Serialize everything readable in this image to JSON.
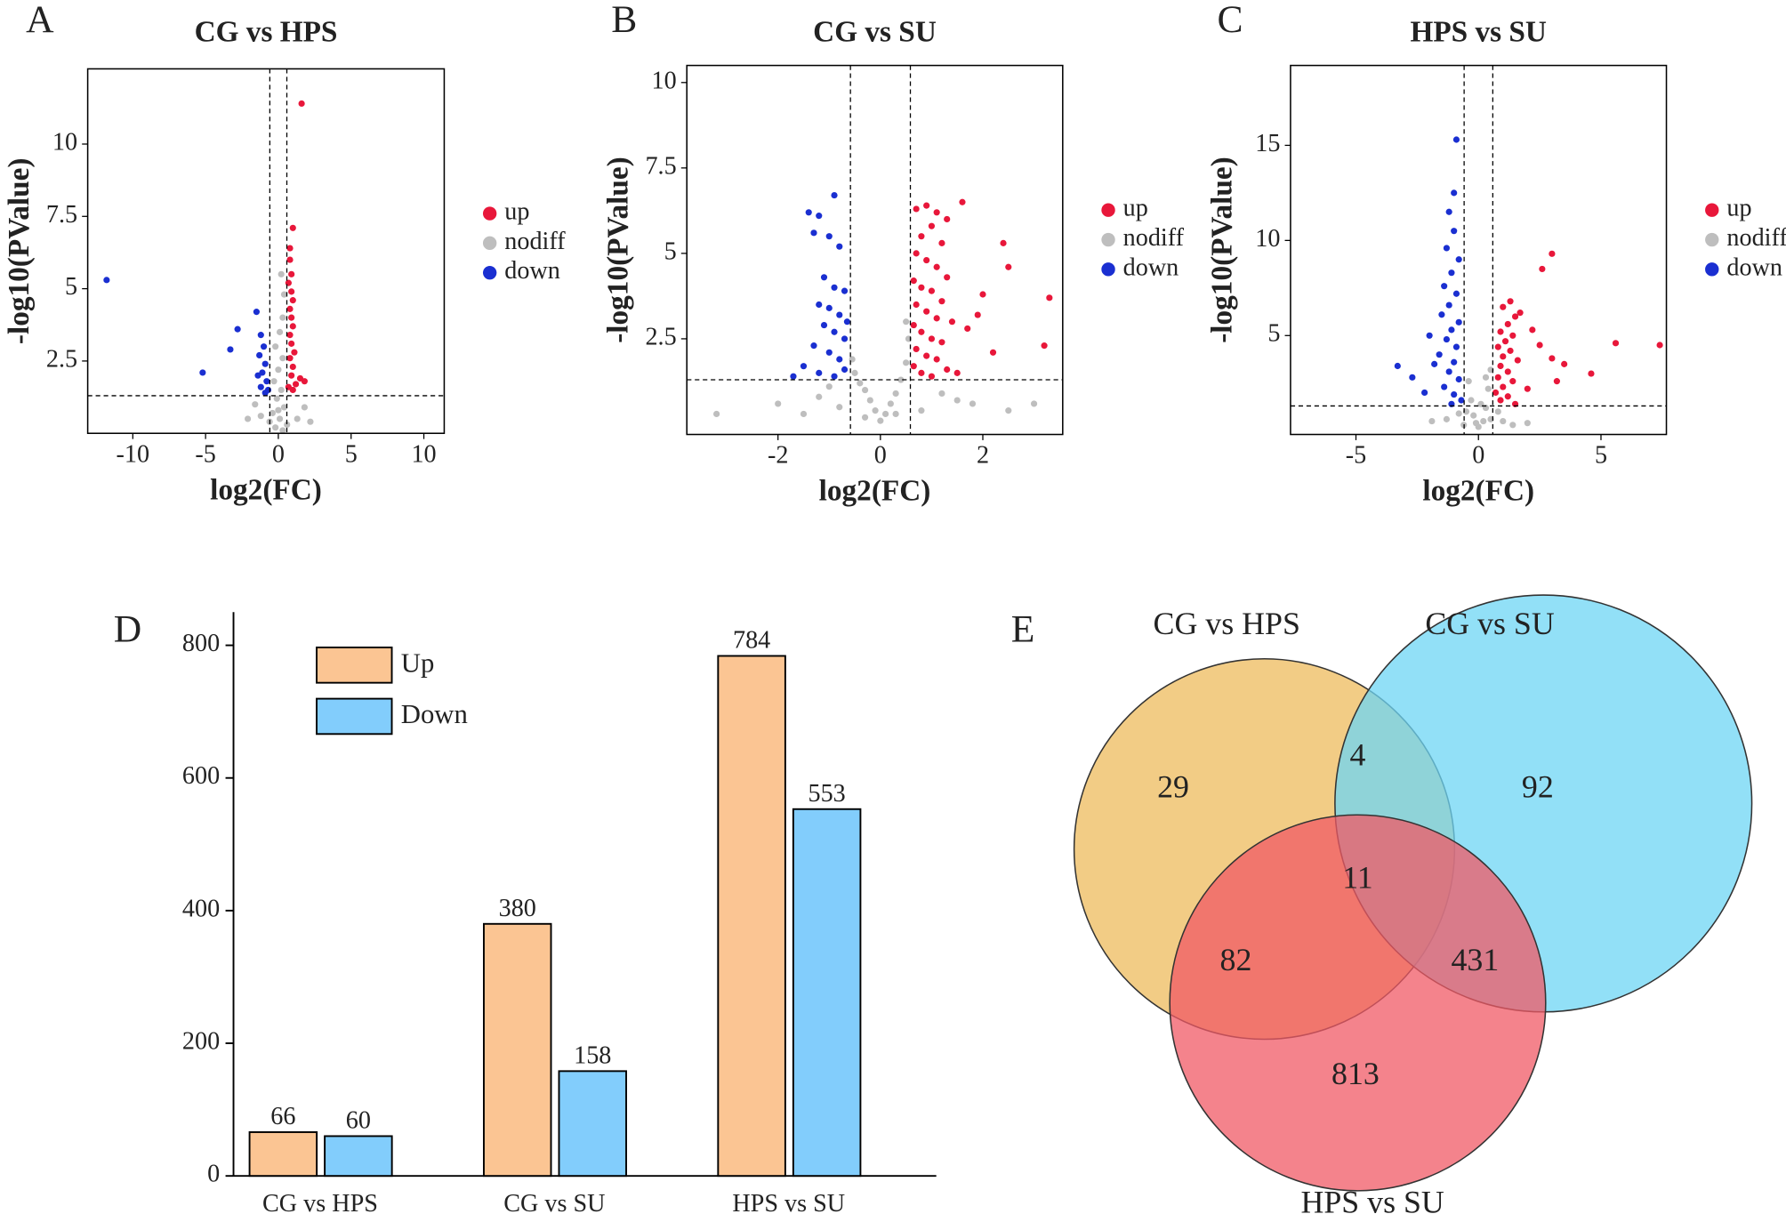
{
  "chart_data": [
    {
      "type": "scatter",
      "panel_label": "A",
      "title": "CG vs HPS",
      "xlabel": "log2(FC)",
      "ylabel": "-log10(PValue)",
      "xlim": [
        -13.1,
        11.4
      ],
      "ylim": [
        0,
        12.6
      ],
      "xticks": [
        -10,
        -5,
        0,
        5,
        10
      ],
      "yticks": [
        2.5,
        5,
        7.5,
        10
      ],
      "thresholds": {
        "x": [
          -0.585,
          0.585
        ],
        "y": 1.3
      },
      "legend": "right",
      "series": [
        {
          "name": "up",
          "color": "#e8173a",
          "x": [
            1.6,
            1.0,
            0.8,
            0.8,
            0.9,
            0.7,
            0.9,
            1.0,
            0.8,
            0.9,
            1.0,
            0.8,
            0.9,
            1.1,
            0.8,
            1.0,
            0.9,
            1.5,
            1.8,
            1.2,
            0.7,
            1.0
          ],
          "values": [
            11.4,
            7.1,
            6.4,
            6.0,
            5.5,
            5.2,
            4.9,
            4.6,
            4.3,
            4.0,
            3.7,
            3.4,
            3.1,
            2.8,
            2.6,
            2.3,
            2.0,
            1.9,
            1.8,
            1.7,
            1.6,
            1.5
          ]
        },
        {
          "name": "nodiff",
          "color": "#bebebe",
          "x": [
            0.2,
            0.4,
            0.3,
            0.1,
            -0.2,
            0.3,
            0.0,
            -0.3,
            0.2,
            -0.1,
            0.4,
            -0.4,
            0.1,
            -0.6,
            0.6,
            -1.2,
            1.3,
            -2.1,
            2.2,
            -0.2,
            0.3,
            1.8,
            -1.6,
            0.0
          ],
          "values": [
            5.5,
            4.8,
            4.0,
            3.5,
            3.0,
            2.6,
            2.2,
            1.8,
            1.5,
            1.2,
            0.9,
            0.7,
            0.5,
            0.4,
            0.3,
            0.6,
            0.5,
            0.5,
            0.4,
            0.2,
            0.1,
            0.9,
            1.0,
            0.8
          ]
        },
        {
          "name": "down",
          "color": "#1a2fd1",
          "x": [
            -11.8,
            -5.2,
            -3.3,
            -2.8,
            -1.5,
            -1.2,
            -1.0,
            -1.3,
            -0.9,
            -1.1,
            -0.8,
            -1.2,
            -0.7,
            -1.4,
            -0.9
          ],
          "values": [
            5.3,
            2.1,
            2.9,
            3.6,
            4.2,
            3.4,
            3.0,
            2.7,
            2.4,
            2.1,
            1.8,
            1.6,
            1.5,
            2.0,
            1.4
          ]
        }
      ]
    },
    {
      "type": "scatter",
      "panel_label": "B",
      "title": "CG vs SU",
      "xlabel": "log2(FC)",
      "ylabel": "-log10(PValue)",
      "xlim": [
        -3.78,
        3.56
      ],
      "ylim": [
        -0.3,
        10.5
      ],
      "xticks": [
        -2,
        0,
        2
      ],
      "yticks": [
        2.5,
        5,
        7.5,
        10
      ],
      "thresholds": {
        "x": [
          -0.585,
          0.585
        ],
        "y": 1.3
      },
      "legend": "right",
      "series": [
        {
          "name": "up",
          "color": "#e8173a",
          "x": [
            0.7,
            0.9,
            1.1,
            1.3,
            0.8,
            1.0,
            1.2,
            0.7,
            0.9,
            1.1,
            1.3,
            0.65,
            0.8,
            1.0,
            1.2,
            0.7,
            0.9,
            1.1,
            1.4,
            0.65,
            0.8,
            1.0,
            1.2,
            0.7,
            0.9,
            1.1,
            0.65,
            0.8,
            1.0,
            1.3,
            1.6,
            2.4,
            2.5,
            3.3,
            2.2,
            3.2,
            1.9,
            1.7,
            2.0,
            1.5
          ],
          "values": [
            6.3,
            6.4,
            6.2,
            6.0,
            5.5,
            5.8,
            5.3,
            5.0,
            4.8,
            4.6,
            4.3,
            4.2,
            4.0,
            3.9,
            3.6,
            3.5,
            3.3,
            3.1,
            3.0,
            2.9,
            2.7,
            2.5,
            2.4,
            2.2,
            2.0,
            1.9,
            1.7,
            1.5,
            1.4,
            1.6,
            6.5,
            5.3,
            4.6,
            3.7,
            2.1,
            2.3,
            3.2,
            2.8,
            3.8,
            1.5
          ]
        },
        {
          "name": "nodiff",
          "color": "#bebebe",
          "x": [
            0.0,
            0.1,
            -0.1,
            0.2,
            -0.2,
            0.3,
            -0.3,
            0.4,
            -0.4,
            0.5,
            -0.5,
            0.55,
            0.5,
            -0.55,
            0.3,
            -0.3,
            -1.2,
            -1.5,
            -2.0,
            -3.2,
            1.2,
            1.5,
            1.8,
            2.5,
            3.0,
            -0.8,
            0.8,
            -1.0
          ],
          "values": [
            0.1,
            0.3,
            0.4,
            0.6,
            0.7,
            0.9,
            1.0,
            1.3,
            1.2,
            1.8,
            1.5,
            2.5,
            3.0,
            1.9,
            0.3,
            0.2,
            0.8,
            0.3,
            0.6,
            0.3,
            0.9,
            0.7,
            0.6,
            0.4,
            0.6,
            0.5,
            0.4,
            1.1
          ]
        },
        {
          "name": "down",
          "color": "#1a2fd1",
          "x": [
            -1.4,
            -1.2,
            -0.9,
            -1.3,
            -1.0,
            -0.8,
            -1.1,
            -0.9,
            -0.7,
            -1.2,
            -1.0,
            -0.8,
            -0.65,
            -1.1,
            -0.9,
            -0.7,
            -1.3,
            -1.0,
            -0.8,
            -1.5,
            -1.2,
            -0.7,
            -0.9,
            -1.7
          ],
          "values": [
            6.2,
            6.1,
            6.7,
            5.6,
            5.5,
            5.2,
            4.3,
            4.0,
            3.9,
            3.5,
            3.4,
            3.2,
            3.0,
            2.9,
            2.7,
            2.5,
            2.3,
            2.1,
            1.9,
            1.7,
            1.5,
            1.6,
            1.4,
            1.4
          ]
        }
      ]
    },
    {
      "type": "scatter",
      "panel_label": "C",
      "title": "HPS vs SU",
      "xlabel": "log2(FC)",
      "ylabel": "-log10(PValue)",
      "xlim": [
        -7.67,
        7.67
      ],
      "ylim": [
        -0.2,
        19.2
      ],
      "xticks": [
        -5,
        0,
        5
      ],
      "yticks": [
        5,
        10,
        15
      ],
      "thresholds": {
        "x": [
          -0.585,
          0.585
        ],
        "y": 1.3
      },
      "legend": "right",
      "series": [
        {
          "name": "up",
          "color": "#e8173a",
          "x": [
            1.0,
            1.3,
            1.5,
            1.2,
            0.9,
            1.4,
            1.1,
            0.8,
            1.3,
            1.0,
            1.6,
            0.9,
            1.2,
            0.8,
            1.4,
            1.0,
            0.7,
            1.2,
            0.9,
            1.5,
            2.6,
            3.0,
            1.7,
            2.2,
            2.5,
            3.0,
            3.5,
            5.6,
            7.4,
            4.6,
            3.2,
            2.0
          ],
          "values": [
            6.5,
            6.8,
            6.0,
            5.6,
            5.2,
            5.0,
            4.7,
            4.4,
            4.2,
            3.9,
            3.7,
            3.4,
            3.1,
            2.8,
            2.6,
            2.3,
            2.0,
            1.8,
            1.6,
            1.4,
            8.5,
            9.3,
            6.2,
            5.3,
            4.5,
            3.8,
            3.5,
            4.6,
            4.5,
            3.0,
            2.6,
            2.2
          ]
        },
        {
          "name": "nodiff",
          "color": "#bebebe",
          "x": [
            0.0,
            0.2,
            -0.2,
            0.3,
            -0.3,
            0.4,
            -0.4,
            0.5,
            -0.5,
            0.1,
            -0.1,
            0.5,
            -0.6,
            1.0,
            -1.3,
            1.4,
            -0.8,
            0.8,
            2.0,
            -1.9,
            0.3
          ],
          "values": [
            0.2,
            0.5,
            0.8,
            1.2,
            1.6,
            2.2,
            2.6,
            3.2,
            1.0,
            1.4,
            0.4,
            0.6,
            0.3,
            0.5,
            0.6,
            0.3,
            0.9,
            1.0,
            0.4,
            0.5,
            2.8
          ]
        },
        {
          "name": "down",
          "color": "#1a2fd1",
          "x": [
            -0.9,
            -1.0,
            -1.2,
            -1.0,
            -1.3,
            -0.8,
            -1.1,
            -1.4,
            -0.9,
            -1.2,
            -1.5,
            -0.8,
            -1.1,
            -1.3,
            -0.9,
            -1.6,
            -1.0,
            -1.2,
            -0.8,
            -1.4,
            -1.0,
            -0.7,
            -1.1,
            -3.3,
            -2.7,
            -2.2,
            -1.8,
            -2.0
          ],
          "values": [
            15.3,
            12.5,
            11.5,
            10.5,
            9.6,
            9.0,
            8.3,
            7.6,
            7.2,
            6.6,
            6.1,
            5.7,
            5.3,
            4.8,
            4.4,
            4.0,
            3.6,
            3.1,
            2.7,
            2.3,
            1.9,
            1.6,
            1.4,
            3.4,
            2.8,
            2.0,
            3.5,
            5.0
          ]
        }
      ]
    },
    {
      "type": "bar",
      "panel_label": "D",
      "categories": [
        "CG vs HPS",
        "CG vs SU",
        "HPS vs SU"
      ],
      "ylim": [
        0,
        850
      ],
      "yticks": [
        0,
        200,
        400,
        600,
        800
      ],
      "legend": "upper left",
      "series": [
        {
          "name": "Up",
          "color": "#fbc593",
          "values": [
            66,
            380,
            784
          ]
        },
        {
          "name": "Down",
          "color": "#82cdfc",
          "values": [
            60,
            158,
            553
          ]
        }
      ]
    },
    {
      "type": "venn",
      "panel_label": "E",
      "sets": [
        {
          "name": "CG vs HPS",
          "color": "#eebb5c"
        },
        {
          "name": "CG vs SU",
          "color": "#6dd6f4"
        },
        {
          "name": "HPS vs SU",
          "color": "#f05a66"
        }
      ],
      "regions": [
        {
          "sets": [
            "CG vs HPS"
          ],
          "value": 29
        },
        {
          "sets": [
            "CG vs HPS",
            "CG vs SU"
          ],
          "value": 4
        },
        {
          "sets": [
            "CG vs SU"
          ],
          "value": 92
        },
        {
          "sets": [
            "CG vs HPS",
            "CG vs SU",
            "HPS vs SU"
          ],
          "value": 11
        },
        {
          "sets": [
            "CG vs HPS",
            "HPS vs SU"
          ],
          "value": 82
        },
        {
          "sets": [
            "CG vs SU",
            "HPS vs SU"
          ],
          "value": 431
        },
        {
          "sets": [
            "HPS vs SU"
          ],
          "value": 813
        }
      ]
    }
  ]
}
